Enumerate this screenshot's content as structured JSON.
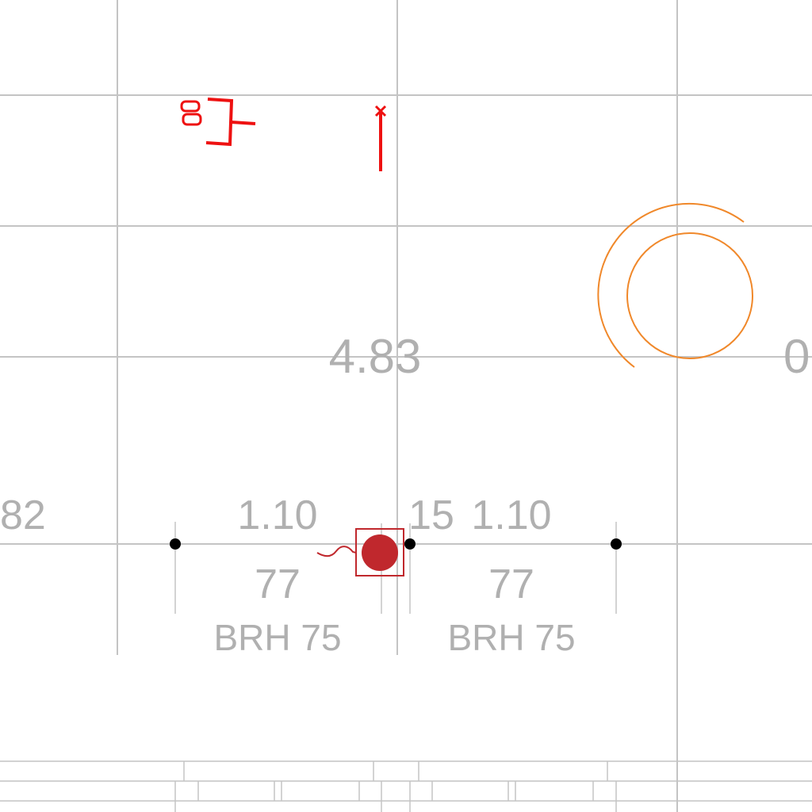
{
  "labels": {
    "center_value": "4.83",
    "right_edge_value": "0",
    "left_edge_value": "82",
    "dim_left_top": "1.10",
    "dim_left_bottom": "77",
    "dim_left_caption": "BRH 75",
    "dim_mid": "15",
    "dim_right_top": "1.10",
    "dim_right_bottom": "77",
    "dim_right_caption": "BRH 75"
  },
  "colors": {
    "grid": "#c4c4c4",
    "text": "#b0b0b0",
    "red_mark": "#ee1111",
    "symbol": "#c0282d",
    "arc": "#f0882a"
  }
}
